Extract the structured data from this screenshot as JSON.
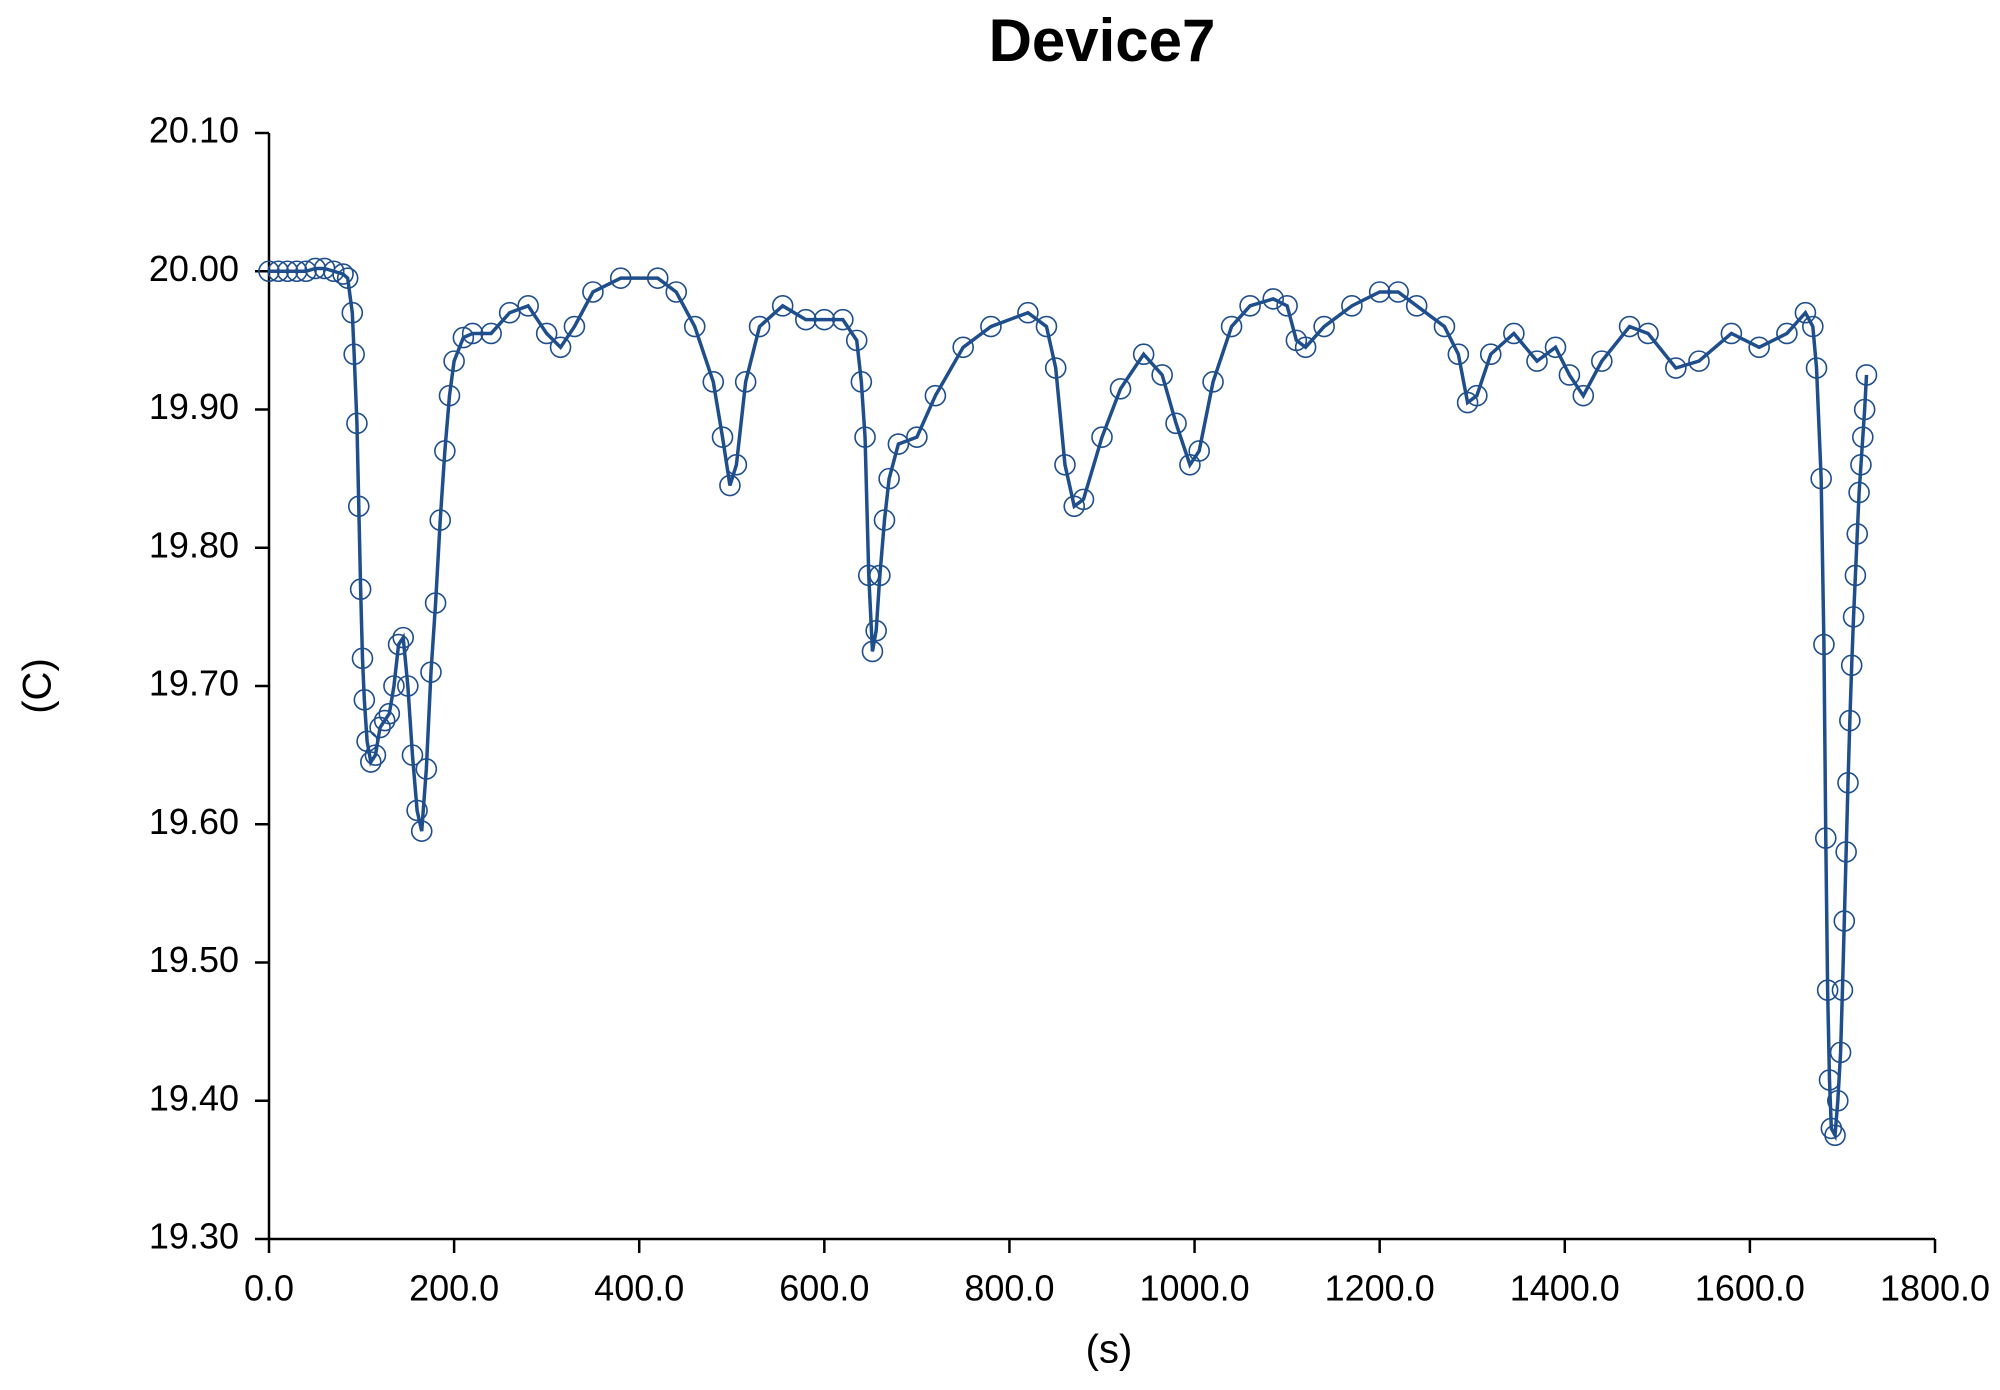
{
  "chart_data": {
    "type": "line",
    "title": "Device7",
    "x_label": "(s)",
    "y_label": "(C)",
    "color": "#1f4e8c",
    "x": [
      0,
      10,
      20,
      30,
      40,
      50,
      60,
      70,
      80,
      85,
      90,
      92,
      95,
      97,
      99,
      101,
      103,
      106,
      110,
      115,
      120,
      125,
      130,
      135,
      140,
      145,
      150,
      155,
      160,
      165,
      170,
      175,
      180,
      185,
      190,
      195,
      200,
      210,
      220,
      240,
      260,
      280,
      300,
      315,
      330,
      350,
      380,
      420,
      440,
      460,
      480,
      490,
      498,
      505,
      515,
      530,
      555,
      580,
      600,
      620,
      635,
      640,
      644,
      648,
      652,
      656,
      660,
      665,
      670,
      680,
      700,
      720,
      750,
      780,
      820,
      840,
      850,
      860,
      870,
      880,
      900,
      920,
      945,
      965,
      980,
      995,
      1005,
      1020,
      1040,
      1060,
      1085,
      1100,
      1110,
      1120,
      1140,
      1170,
      1200,
      1220,
      1240,
      1270,
      1285,
      1295,
      1305,
      1320,
      1345,
      1370,
      1390,
      1405,
      1420,
      1440,
      1470,
      1490,
      1520,
      1545,
      1580,
      1610,
      1640,
      1660,
      1668,
      1672,
      1677,
      1680,
      1682,
      1684,
      1686,
      1688,
      1692,
      1695,
      1698,
      1700,
      1702,
      1704,
      1706,
      1708,
      1710,
      1712,
      1714,
      1716,
      1718,
      1720,
      1722,
      1724,
      1726
    ],
    "values": [
      20.0,
      20.0,
      20.0,
      20.0,
      20.0,
      20.002,
      20.002,
      20.0,
      19.998,
      19.995,
      19.97,
      19.94,
      19.89,
      19.83,
      19.77,
      19.72,
      19.69,
      19.66,
      19.645,
      19.65,
      19.67,
      19.675,
      19.68,
      19.7,
      19.73,
      19.735,
      19.7,
      19.65,
      19.61,
      19.595,
      19.64,
      19.71,
      19.76,
      19.82,
      19.87,
      19.91,
      19.935,
      19.952,
      19.955,
      19.955,
      19.97,
      19.975,
      19.955,
      19.945,
      19.96,
      19.985,
      19.995,
      19.995,
      19.985,
      19.96,
      19.92,
      19.88,
      19.845,
      19.86,
      19.92,
      19.96,
      19.975,
      19.965,
      19.965,
      19.965,
      19.95,
      19.92,
      19.88,
      19.78,
      19.725,
      19.74,
      19.78,
      19.82,
      19.85,
      19.875,
      19.88,
      19.91,
      19.945,
      19.96,
      19.97,
      19.96,
      19.93,
      19.86,
      19.83,
      19.835,
      19.88,
      19.915,
      19.94,
      19.925,
      19.89,
      19.86,
      19.87,
      19.92,
      19.96,
      19.975,
      19.98,
      19.975,
      19.95,
      19.945,
      19.96,
      19.975,
      19.985,
      19.985,
      19.975,
      19.96,
      19.94,
      19.905,
      19.91,
      19.94,
      19.955,
      19.935,
      19.945,
      19.925,
      19.91,
      19.935,
      19.96,
      19.955,
      19.93,
      19.935,
      19.955,
      19.945,
      19.955,
      19.97,
      19.96,
      19.93,
      19.85,
      19.73,
      19.59,
      19.48,
      19.415,
      19.38,
      19.375,
      19.4,
      19.435,
      19.48,
      19.53,
      19.58,
      19.63,
      19.675,
      19.715,
      19.75,
      19.78,
      19.81,
      19.84,
      19.86,
      19.88,
      19.9,
      19.925
    ],
    "xlim": [
      0,
      1800
    ],
    "xticks": [
      {
        "value": 0,
        "label": "0.0"
      },
      {
        "value": 200,
        "label": "200.0"
      },
      {
        "value": 400,
        "label": "400.0"
      },
      {
        "value": 600,
        "label": "600.0"
      },
      {
        "value": 800,
        "label": "800.0"
      },
      {
        "value": 1000,
        "label": "1000.0"
      },
      {
        "value": 1200,
        "label": "1200.0"
      },
      {
        "value": 1400,
        "label": "1400.0"
      },
      {
        "value": 1600,
        "label": "1600.0"
      },
      {
        "value": 1800,
        "label": "1800.0"
      }
    ],
    "ylim": [
      19.3,
      20.1
    ],
    "yticks": [
      {
        "value": 19.3,
        "label": "19.30"
      },
      {
        "value": 19.4,
        "label": "19.40"
      },
      {
        "value": 19.5,
        "label": "19.50"
      },
      {
        "value": 19.6,
        "label": "19.60"
      },
      {
        "value": 19.7,
        "label": "19.70"
      },
      {
        "value": 19.8,
        "label": "19.80"
      },
      {
        "value": 19.9,
        "label": "19.90"
      },
      {
        "value": 20.0,
        "label": "20.00"
      },
      {
        "value": 20.1,
        "label": "20.10"
      }
    ],
    "grid": false,
    "markers": true
  }
}
